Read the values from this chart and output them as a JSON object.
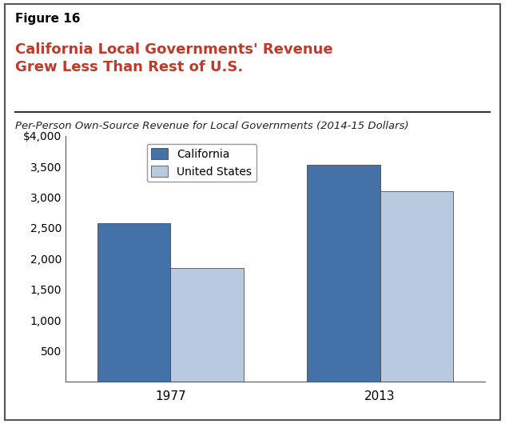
{
  "figure_label": "Figure 16",
  "title": "California Local Governments' Revenue\nGrew Less Than Rest of U.S.",
  "subtitle": "Per-Person Own-Source Revenue for Local Governments (2014-15 Dollars)",
  "categories": [
    "1977",
    "2013"
  ],
  "california_values": [
    2580,
    3530
  ],
  "us_values": [
    1850,
    3100
  ],
  "bar_color_california": "#4472A8",
  "bar_color_us": "#B8C9E0",
  "ylim": [
    0,
    4000
  ],
  "yticks": [
    0,
    500,
    1000,
    1500,
    2000,
    2500,
    3000,
    3500,
    4000
  ],
  "ytick_labels": [
    "",
    "500",
    "1,000",
    "1,500",
    "2,000",
    "2,500",
    "3,000",
    "3,500",
    "$4,000"
  ],
  "legend_labels": [
    "California",
    "United States"
  ],
  "title_color": "#C0392B",
  "figure_label_color": "#000000",
  "background_color": "#FFFFFF",
  "bar_width": 0.35,
  "border_color": "#555555"
}
